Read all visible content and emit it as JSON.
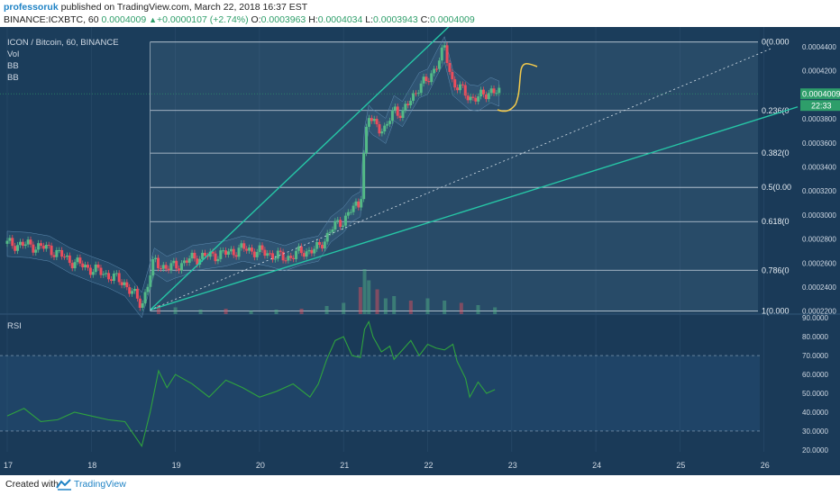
{
  "header": {
    "publisher": "professoruk",
    "published_text": " published on TradingView.com, March 22, 2018 16:37 EST",
    "symbol": "BINANCE:ICXBTC, 60",
    "last": "0.0004009",
    "change": "+0.0000107 (+2.74%)",
    "o_label": "O:",
    "o": "0.0003963",
    "h_label": "H:",
    "h": "0.0004034",
    "l_label": "L:",
    "l": "0.0003943",
    "c_label": "C:",
    "c": "0.0004009"
  },
  "legend": {
    "title": "ICON / Bitcoin, 60, BINANCE",
    "vol": "Vol",
    "bb1": "BB",
    "bb2": "BB",
    "rsi": "RSI"
  },
  "price_badge": {
    "value": "0.0004009",
    "countdown": "22:33"
  },
  "footer": {
    "created": "Created with",
    "brand": "TradingView"
  },
  "colors": {
    "background": "#1a3a58",
    "grid": "#2a4c6b",
    "up": "#53b987",
    "down": "#eb4d5c",
    "trend": "#26c6a6",
    "rsi": "#2fa33e",
    "fib": "#c8d3de",
    "badge": "#2e9e6a"
  },
  "chart_data": [
    {
      "type": "candlestick",
      "title": "ICON / Bitcoin, 60, BINANCE",
      "x_tick_labels": [
        "17",
        "18",
        "19",
        "20",
        "21",
        "22",
        "23",
        "24",
        "25",
        "26"
      ],
      "y_tick_labels": [
        "0.0004400",
        "0.0004200",
        "0.0004000",
        "0.0003800",
        "0.0003600",
        "0.0003400",
        "0.0003200",
        "0.0003000",
        "0.0002800",
        "0.0002600",
        "0.0002400",
        "0.0002200"
      ],
      "ylim": [
        0.0002175,
        0.0004565
      ],
      "close_series": {
        "x": [
          17.0,
          17.25,
          17.5,
          17.75,
          18.0,
          18.2,
          18.4,
          18.6,
          18.75,
          18.9,
          19.0,
          19.1,
          19.2,
          19.4,
          19.6,
          19.8,
          19.95,
          20.1,
          20.3,
          20.5,
          20.7,
          20.85,
          21.0,
          21.1,
          21.2,
          21.25,
          21.3,
          21.35,
          21.4,
          21.5,
          21.6,
          21.7,
          21.8,
          21.9,
          22.0,
          22.1,
          22.2,
          22.3,
          22.4,
          22.5,
          22.6,
          22.75,
          22.85
        ],
        "y": [
          0.000276,
          0.000275,
          0.000272,
          0.000262,
          0.000255,
          0.00025,
          0.000243,
          0.000225,
          0.000262,
          0.000255,
          0.000258,
          0.00026,
          0.000264,
          0.000266,
          0.000268,
          0.000272,
          0.00027,
          0.000268,
          0.000264,
          0.000269,
          0.000272,
          0.000288,
          0.000296,
          0.000305,
          0.000309,
          0.000362,
          0.000381,
          0.000377,
          0.000375,
          0.00037,
          0.000389,
          0.000384,
          0.000396,
          0.000408,
          0.000411,
          0.000425,
          0.000438,
          0.00041,
          0.000404,
          0.000398,
          0.000397,
          0.000404,
          0.000401
        ]
      },
      "last_price": 0.0004009,
      "fibonacci": {
        "levels": [
          {
            "ratio_label": "0(0.000",
            "price": 0.000444
          },
          {
            "ratio_label": "0.236(0",
            "price": 0.000387
          },
          {
            "ratio_label": "0.382(0",
            "price": 0.0003515
          },
          {
            "ratio_label": "0.5(0.00",
            "price": 0.000323
          },
          {
            "ratio_label": "0.618(0",
            "price": 0.0002945
          },
          {
            "ratio_label": "0.786(0",
            "price": 0.000254
          },
          {
            "ratio_label": "1(0.000",
            "price": 0.00022
          }
        ],
        "x_start": 18.7
      },
      "trend_lines": [
        {
          "style": "solid",
          "x": [
            18.7,
            22.3
          ],
          "y": [
            0.000221,
            0.00046
          ]
        },
        {
          "style": "solid",
          "x": [
            18.7,
            26.4
          ],
          "y": [
            0.000221,
            0.00039
          ]
        },
        {
          "style": "dotted",
          "x": [
            18.7,
            26.1
          ],
          "y": [
            0.000221,
            0.000439
          ]
        }
      ],
      "volume_bars_note": "volume shown as bars near bottom of price pane",
      "volume": {
        "x": [
          18.8,
          19.0,
          19.3,
          19.6,
          19.9,
          20.2,
          20.5,
          20.8,
          21.0,
          21.2,
          21.25,
          21.3,
          21.4,
          21.5,
          21.6,
          21.8,
          22.0,
          22.2,
          22.4,
          22.6,
          22.8
        ],
        "y": [
          0.2,
          0.15,
          0.1,
          0.12,
          0.08,
          0.1,
          0.12,
          0.18,
          0.25,
          0.6,
          1.0,
          0.75,
          0.55,
          0.35,
          0.4,
          0.3,
          0.35,
          0.3,
          0.25,
          0.2,
          0.15
        ]
      }
    },
    {
      "type": "line",
      "title": "RSI",
      "x_tick_labels": [
        "17",
        "18",
        "19",
        "20",
        "21",
        "22",
        "23",
        "24",
        "25",
        "26"
      ],
      "y_tick_labels": [
        "90.0000",
        "80.0000",
        "70.0000",
        "60.0000",
        "50.0000",
        "40.0000",
        "30.0000",
        "20.0000"
      ],
      "ylim": [
        19,
        92
      ],
      "bands": [
        30,
        70
      ],
      "series": [
        {
          "x": [
            17.0,
            17.2,
            17.4,
            17.6,
            17.8,
            18.0,
            18.2,
            18.4,
            18.6,
            18.7,
            18.8,
            18.9,
            19.0,
            19.2,
            19.4,
            19.6,
            19.8,
            20.0,
            20.2,
            20.4,
            20.6,
            20.7,
            20.8,
            20.9,
            21.0,
            21.1,
            21.2,
            21.25,
            21.3,
            21.35,
            21.45,
            21.55,
            21.6,
            21.7,
            21.8,
            21.9,
            22.0,
            22.1,
            22.2,
            22.3,
            22.35,
            22.45,
            22.5,
            22.6,
            22.7,
            22.8
          ],
          "y": [
            38,
            42,
            35,
            36,
            40,
            38,
            36,
            35,
            22,
            40,
            62,
            53,
            60,
            55,
            48,
            57,
            53,
            48,
            51,
            55,
            48,
            55,
            68,
            78,
            80,
            70,
            69,
            84,
            88,
            80,
            72,
            75,
            68,
            73,
            78,
            70,
            76,
            74,
            73,
            76,
            67,
            58,
            48,
            56,
            50,
            52
          ]
        }
      ]
    }
  ]
}
